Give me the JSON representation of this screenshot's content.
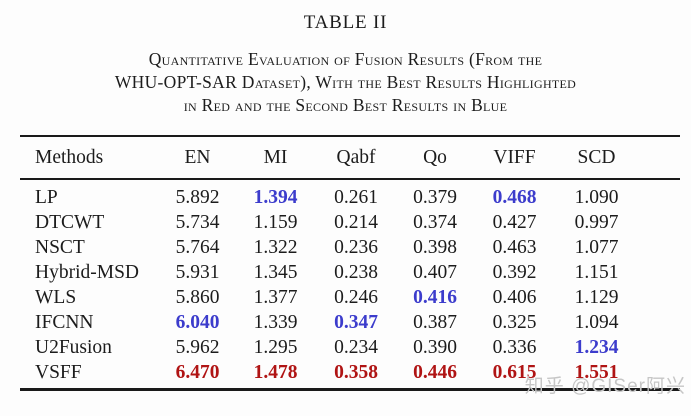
{
  "title": "TABLE II",
  "caption_lines": [
    "Quantitative Evaluation of Fusion Results (From the",
    "WHU-OPT-SAR Dataset), With the Best Results Highlighted",
    "in Red and the Second Best Results in Blue"
  ],
  "table": {
    "columns": [
      "Methods",
      "EN",
      "MI",
      "Qabf",
      "Qo",
      "VIFF",
      "SCD"
    ],
    "rows": [
      {
        "method": "LP",
        "cells": [
          {
            "v": "5.892",
            "hl": "none"
          },
          {
            "v": "1.394",
            "hl": "second"
          },
          {
            "v": "0.261",
            "hl": "none"
          },
          {
            "v": "0.379",
            "hl": "none"
          },
          {
            "v": "0.468",
            "hl": "second"
          },
          {
            "v": "1.090",
            "hl": "none"
          }
        ]
      },
      {
        "method": "DTCWT",
        "cells": [
          {
            "v": "5.734",
            "hl": "none"
          },
          {
            "v": "1.159",
            "hl": "none"
          },
          {
            "v": "0.214",
            "hl": "none"
          },
          {
            "v": "0.374",
            "hl": "none"
          },
          {
            "v": "0.427",
            "hl": "none"
          },
          {
            "v": "0.997",
            "hl": "none"
          }
        ]
      },
      {
        "method": "NSCT",
        "cells": [
          {
            "v": "5.764",
            "hl": "none"
          },
          {
            "v": "1.322",
            "hl": "none"
          },
          {
            "v": "0.236",
            "hl": "none"
          },
          {
            "v": "0.398",
            "hl": "none"
          },
          {
            "v": "0.463",
            "hl": "none"
          },
          {
            "v": "1.077",
            "hl": "none"
          }
        ]
      },
      {
        "method": "Hybrid-MSD",
        "cells": [
          {
            "v": "5.931",
            "hl": "none"
          },
          {
            "v": "1.345",
            "hl": "none"
          },
          {
            "v": "0.238",
            "hl": "none"
          },
          {
            "v": "0.407",
            "hl": "none"
          },
          {
            "v": "0.392",
            "hl": "none"
          },
          {
            "v": "1.151",
            "hl": "none"
          }
        ]
      },
      {
        "method": "WLS",
        "cells": [
          {
            "v": "5.860",
            "hl": "none"
          },
          {
            "v": "1.377",
            "hl": "none"
          },
          {
            "v": "0.246",
            "hl": "none"
          },
          {
            "v": "0.416",
            "hl": "second"
          },
          {
            "v": "0.406",
            "hl": "none"
          },
          {
            "v": "1.129",
            "hl": "none"
          }
        ]
      },
      {
        "method": "IFCNN",
        "cells": [
          {
            "v": "6.040",
            "hl": "second"
          },
          {
            "v": "1.339",
            "hl": "none"
          },
          {
            "v": "0.347",
            "hl": "second"
          },
          {
            "v": "0.387",
            "hl": "none"
          },
          {
            "v": "0.325",
            "hl": "none"
          },
          {
            "v": "1.094",
            "hl": "none"
          }
        ]
      },
      {
        "method": "U2Fusion",
        "cells": [
          {
            "v": "5.962",
            "hl": "none"
          },
          {
            "v": "1.295",
            "hl": "none"
          },
          {
            "v": "0.234",
            "hl": "none"
          },
          {
            "v": "0.390",
            "hl": "none"
          },
          {
            "v": "0.336",
            "hl": "none"
          },
          {
            "v": "1.234",
            "hl": "second"
          }
        ]
      },
      {
        "method": "VSFF",
        "cells": [
          {
            "v": "6.470",
            "hl": "best"
          },
          {
            "v": "1.478",
            "hl": "best"
          },
          {
            "v": "0.358",
            "hl": "best"
          },
          {
            "v": "0.446",
            "hl": "best"
          },
          {
            "v": "0.615",
            "hl": "best"
          },
          {
            "v": "1.551",
            "hl": "best"
          }
        ]
      }
    ]
  },
  "watermark": {
    "text": "知乎 @GISer阿兴"
  },
  "colors": {
    "best": "#b01414",
    "second": "#3c3ccc",
    "ink": "#1c1c1c",
    "watermark": "#c6c6c6"
  }
}
